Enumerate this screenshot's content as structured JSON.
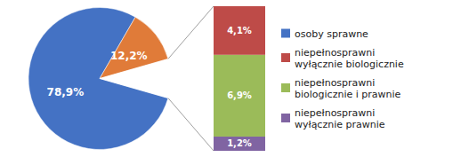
{
  "chart_data": [
    {
      "type": "pie",
      "categories": [
        "osoby sprawne",
        null,
        null
      ],
      "values": [
        78.9,
        12.2,
        8.9
      ],
      "colors": [
        "#4472c4",
        "#e07b39",
        "#ffffff"
      ],
      "value_labels": [
        "78,9%",
        "12,2%",
        null
      ],
      "data_labels": true,
      "legend": "right"
    },
    {
      "type": "bar",
      "stacked": true,
      "categories": [
        null
      ],
      "ylim": [
        0,
        12.2
      ],
      "tick_labels": false,
      "data_labels": true,
      "series": [
        {
          "name": "niepełnosprawni\nwyłącznie biologicznie",
          "color": "#be4b48",
          "values": [
            4.1
          ],
          "value_labels": [
            "4,1%"
          ]
        },
        {
          "name": "niepełnosprawni\nbiologicznie i prawnie",
          "color": "#9bbb59",
          "values": [
            6.9
          ],
          "value_labels": [
            "6,9%"
          ]
        },
        {
          "name": "niepełnosprawni\nwyłącznie prawnie",
          "color": "#8064a2",
          "values": [
            1.2
          ],
          "value_labels": [
            "1,2%"
          ]
        }
      ]
    }
  ]
}
